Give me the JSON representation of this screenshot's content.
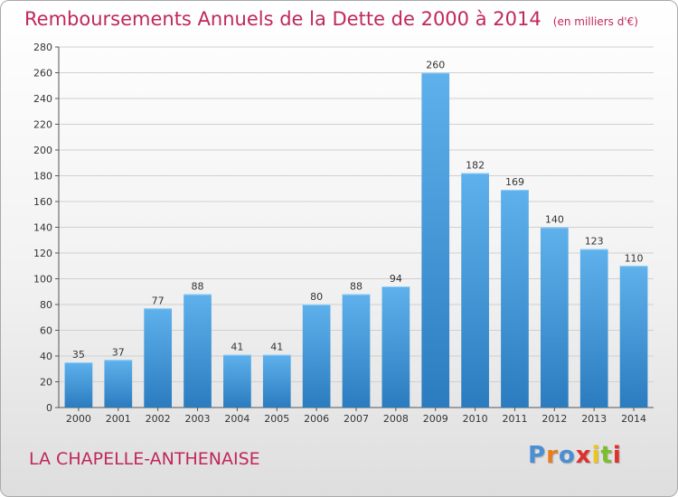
{
  "header": {
    "title": "Remboursements Annuels de la Dette de 2000 à 2014",
    "unit_note": "(en milliers d'€)"
  },
  "footer": {
    "commune": "LA CHAPELLE-ANTHENAISE",
    "logo_text": "Proxiti",
    "logo_colors": [
      "#4a8fd4",
      "#e87d1e",
      "#4a8fd4",
      "#e0302c",
      "#f0c419",
      "#7bbf2a",
      "#e0302c"
    ]
  },
  "colors": {
    "bar_light": "#5fb1ec",
    "bar_dark": "#2a7cbf",
    "title": "#c0285a",
    "grid": "#d0d0d0"
  },
  "chart_data": {
    "type": "bar",
    "title": "Remboursements Annuels de la Dette de 2000 à 2014",
    "xlabel": "",
    "ylabel": "",
    "categories": [
      "2000",
      "2001",
      "2002",
      "2003",
      "2004",
      "2005",
      "2006",
      "2007",
      "2008",
      "2009",
      "2010",
      "2011",
      "2012",
      "2013",
      "2014"
    ],
    "values": [
      35,
      37,
      77,
      88,
      41,
      41,
      80,
      88,
      94,
      260,
      182,
      169,
      140,
      123,
      110
    ],
    "ylim": [
      0,
      280
    ],
    "yticks": [
      0,
      20,
      40,
      60,
      80,
      100,
      120,
      140,
      160,
      180,
      200,
      220,
      240,
      260,
      280
    ],
    "grid": true,
    "data_labels": true
  }
}
